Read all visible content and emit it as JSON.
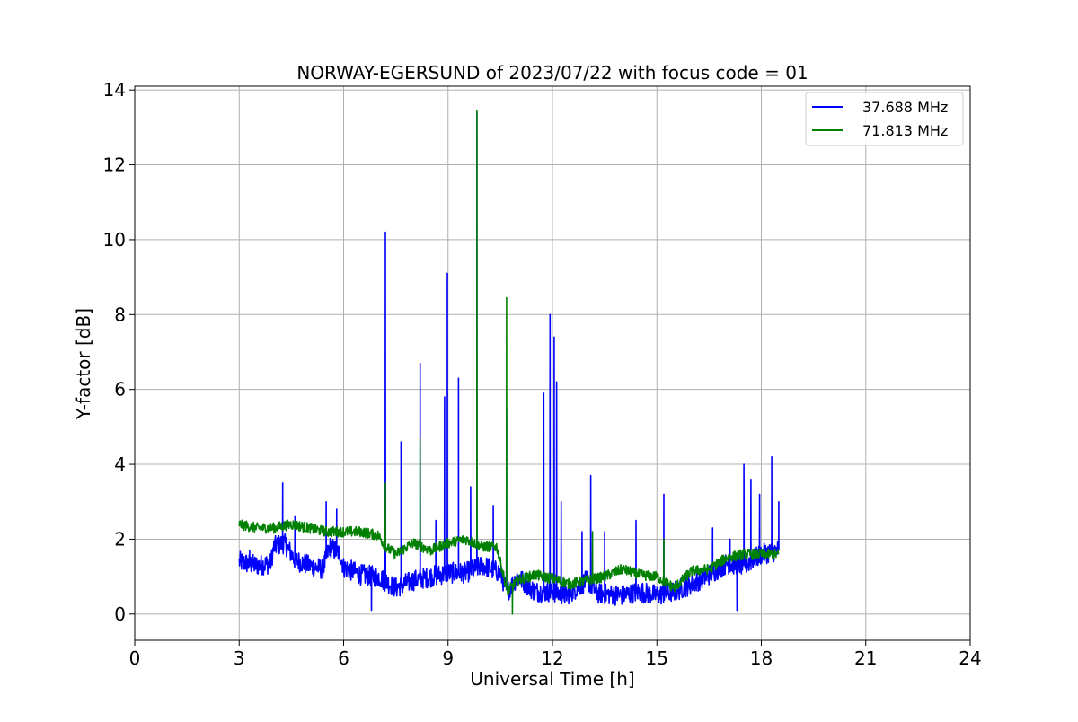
{
  "chart_data": {
    "type": "line",
    "title": "NORWAY-EGERSUND of 2023/07/22 with focus code = 01",
    "xlabel": "Universal Time [h]",
    "ylabel": "Y-factor [dB]",
    "xlim": [
      0,
      24
    ],
    "ylim": [
      -0.7,
      14.1
    ],
    "xticks": [
      0,
      3,
      6,
      9,
      12,
      15,
      18,
      21,
      24
    ],
    "yticks": [
      0,
      2,
      4,
      6,
      8,
      10,
      12,
      14
    ],
    "grid": true,
    "legend_position": "top-right",
    "series": [
      {
        "name": "37.688 MHz",
        "color": "#0000ff",
        "base": [
          [
            3.0,
            1.4
          ],
          [
            3.5,
            1.3
          ],
          [
            3.9,
            1.35
          ],
          [
            4.0,
            1.8
          ],
          [
            4.3,
            1.9
          ],
          [
            4.6,
            1.45
          ],
          [
            5.0,
            1.3
          ],
          [
            5.4,
            1.2
          ],
          [
            5.6,
            1.8
          ],
          [
            5.9,
            1.6
          ],
          [
            6.0,
            1.25
          ],
          [
            6.5,
            1.05
          ],
          [
            7.0,
            1.0
          ],
          [
            7.5,
            0.7
          ],
          [
            8.0,
            0.9
          ],
          [
            8.5,
            1.0
          ],
          [
            9.0,
            1.1
          ],
          [
            9.5,
            1.1
          ],
          [
            10.0,
            1.3
          ],
          [
            10.5,
            1.1
          ],
          [
            10.7,
            0.6
          ],
          [
            11.0,
            1.0
          ],
          [
            11.5,
            0.6
          ],
          [
            12.0,
            0.6
          ],
          [
            12.4,
            0.5
          ],
          [
            13.0,
            0.9
          ],
          [
            13.3,
            0.55
          ],
          [
            14.0,
            0.5
          ],
          [
            14.5,
            0.6
          ],
          [
            15.0,
            0.5
          ],
          [
            15.5,
            0.6
          ],
          [
            16.0,
            0.8
          ],
          [
            16.5,
            1.05
          ],
          [
            17.0,
            1.35
          ],
          [
            17.5,
            1.3
          ],
          [
            18.0,
            1.6
          ],
          [
            18.5,
            1.7
          ]
        ],
        "noise": 0.28,
        "peaks": [
          [
            3.3,
            1.7
          ],
          [
            4.25,
            3.5
          ],
          [
            4.6,
            2.6
          ],
          [
            5.5,
            3.0
          ],
          [
            5.8,
            2.8
          ],
          [
            6.8,
            0.1
          ],
          [
            7.2,
            10.2
          ],
          [
            7.65,
            4.6
          ],
          [
            8.2,
            6.7
          ],
          [
            8.65,
            2.5
          ],
          [
            8.9,
            5.8
          ],
          [
            8.98,
            9.1
          ],
          [
            9.3,
            6.3
          ],
          [
            9.65,
            3.4
          ],
          [
            9.83,
            13.4
          ],
          [
            10.3,
            2.9
          ],
          [
            10.68,
            5.5
          ],
          [
            11.75,
            5.9
          ],
          [
            11.93,
            8.0
          ],
          [
            12.05,
            7.4
          ],
          [
            12.12,
            6.2
          ],
          [
            12.25,
            3.0
          ],
          [
            12.85,
            2.2
          ],
          [
            13.1,
            3.7
          ],
          [
            13.5,
            2.2
          ],
          [
            14.4,
            2.5
          ],
          [
            15.2,
            3.2
          ],
          [
            16.6,
            2.3
          ],
          [
            17.1,
            2.0
          ],
          [
            17.3,
            0.1
          ],
          [
            17.5,
            4.0
          ],
          [
            17.7,
            3.6
          ],
          [
            17.95,
            3.2
          ],
          [
            18.3,
            4.2
          ],
          [
            18.5,
            3.0
          ]
        ]
      },
      {
        "name": "71.813 MHz",
        "color": "#008000",
        "base": [
          [
            3.0,
            2.4
          ],
          [
            3.5,
            2.3
          ],
          [
            4.0,
            2.3
          ],
          [
            4.5,
            2.4
          ],
          [
            5.0,
            2.3
          ],
          [
            5.5,
            2.2
          ],
          [
            6.0,
            2.2
          ],
          [
            6.5,
            2.2
          ],
          [
            7.0,
            2.1
          ],
          [
            7.2,
            1.8
          ],
          [
            7.5,
            1.6
          ],
          [
            8.0,
            1.9
          ],
          [
            8.5,
            1.7
          ],
          [
            9.0,
            1.9
          ],
          [
            9.5,
            2.0
          ],
          [
            10.0,
            1.8
          ],
          [
            10.4,
            1.8
          ],
          [
            10.7,
            0.6
          ],
          [
            11.0,
            0.9
          ],
          [
            11.5,
            1.05
          ],
          [
            12.0,
            0.95
          ],
          [
            12.5,
            0.8
          ],
          [
            13.0,
            0.9
          ],
          [
            13.5,
            1.0
          ],
          [
            14.0,
            1.2
          ],
          [
            14.5,
            1.05
          ],
          [
            15.0,
            1.0
          ],
          [
            15.5,
            0.7
          ],
          [
            16.0,
            1.15
          ],
          [
            16.5,
            1.2
          ],
          [
            17.0,
            1.5
          ],
          [
            17.5,
            1.6
          ],
          [
            18.0,
            1.6
          ],
          [
            18.5,
            1.6
          ]
        ],
        "noise": 0.14,
        "peaks": [
          [
            7.2,
            3.5
          ],
          [
            8.2,
            4.7
          ],
          [
            9.83,
            13.45
          ],
          [
            10.68,
            8.45
          ],
          [
            10.85,
            0.0
          ],
          [
            13.15,
            2.2
          ],
          [
            15.2,
            2.0
          ]
        ]
      }
    ]
  }
}
